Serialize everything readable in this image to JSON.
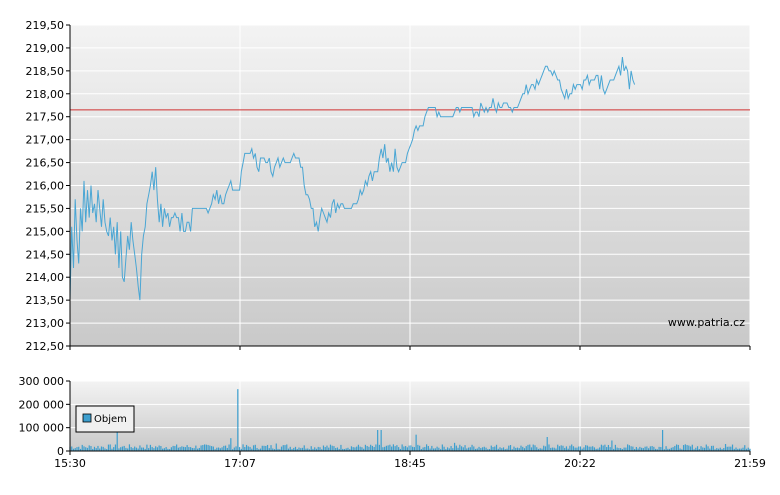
{
  "watermark": "www.patria.cz",
  "colors": {
    "line": "#4aa6d4",
    "reference": "#d03030",
    "volume": "#3d9fcf",
    "bg_top": "#f3f3f3",
    "bg_bottom": "#c9c9c9",
    "grid": "#ffffff",
    "axis": "#000000"
  },
  "chart_data": [
    {
      "type": "line",
      "name": "price",
      "x_tick_labels": [
        "15:30",
        "17:07",
        "18:45",
        "20:22",
        "21:59"
      ],
      "y_tick_labels": [
        "212,50",
        "213,00",
        "213,50",
        "214,00",
        "214,50",
        "215,00",
        "215,50",
        "216,00",
        "216,50",
        "217,00",
        "217,50",
        "218,00",
        "218,50",
        "219,00",
        "219,50"
      ],
      "ylim": [
        212.5,
        219.5
      ],
      "xlim_minutes": [
        0,
        389
      ],
      "reference_line": 217.65,
      "grid": true,
      "points": [
        [
          0,
          213.5
        ],
        [
          1,
          215.1
        ],
        [
          2,
          214.2
        ],
        [
          3,
          215.7
        ],
        [
          4,
          214.8
        ],
        [
          5,
          214.3
        ],
        [
          6,
          215.5
        ],
        [
          7,
          215.0
        ],
        [
          8,
          216.1
        ],
        [
          9,
          215.2
        ],
        [
          10,
          215.9
        ],
        [
          11,
          215.3
        ],
        [
          12,
          216.0
        ],
        [
          13,
          215.4
        ],
        [
          14,
          215.6
        ],
        [
          15,
          215.2
        ],
        [
          16,
          215.9
        ],
        [
          17,
          215.5
        ],
        [
          18,
          215.1
        ],
        [
          19,
          215.7
        ],
        [
          20,
          215.2
        ],
        [
          21,
          215.0
        ],
        [
          22,
          214.9
        ],
        [
          23,
          215.3
        ],
        [
          24,
          214.8
        ],
        [
          25,
          215.1
        ],
        [
          26,
          214.5
        ],
        [
          27,
          215.2
        ],
        [
          28,
          214.2
        ],
        [
          29,
          215.0
        ],
        [
          30,
          214.0
        ],
        [
          31,
          213.9
        ],
        [
          32,
          214.4
        ],
        [
          33,
          214.9
        ],
        [
          34,
          214.6
        ],
        [
          35,
          215.2
        ],
        [
          36,
          214.8
        ],
        [
          37,
          214.5
        ],
        [
          38,
          214.2
        ],
        [
          39,
          213.8
        ],
        [
          40,
          213.5
        ],
        [
          41,
          214.5
        ],
        [
          42,
          214.9
        ],
        [
          43,
          215.1
        ],
        [
          44,
          215.6
        ],
        [
          45,
          215.8
        ],
        [
          46,
          216.0
        ],
        [
          47,
          216.3
        ],
        [
          48,
          215.9
        ],
        [
          49,
          216.4
        ],
        [
          50,
          215.7
        ],
        [
          51,
          215.2
        ],
        [
          52,
          215.6
        ],
        [
          53,
          215.1
        ],
        [
          54,
          215.5
        ],
        [
          55,
          215.3
        ],
        [
          56,
          215.4
        ],
        [
          57,
          215.1
        ],
        [
          58,
          215.3
        ],
        [
          59,
          215.3
        ],
        [
          60,
          215.4
        ],
        [
          61,
          215.3
        ],
        [
          62,
          215.3
        ],
        [
          63,
          215.0
        ],
        [
          64,
          215.4
        ],
        [
          65,
          215.0
        ],
        [
          66,
          215.0
        ],
        [
          67,
          215.2
        ],
        [
          68,
          215.2
        ],
        [
          69,
          215.0
        ],
        [
          70,
          215.5
        ],
        [
          71,
          215.5
        ],
        [
          72,
          215.5
        ],
        [
          73,
          215.5
        ],
        [
          74,
          215.5
        ],
        [
          75,
          215.5
        ],
        [
          76,
          215.5
        ],
        [
          77,
          215.5
        ],
        [
          78,
          215.5
        ],
        [
          79,
          215.4
        ],
        [
          80,
          215.5
        ],
        [
          81,
          215.6
        ],
        [
          82,
          215.8
        ],
        [
          83,
          215.7
        ],
        [
          84,
          215.9
        ],
        [
          85,
          215.6
        ],
        [
          86,
          215.8
        ],
        [
          87,
          215.6
        ],
        [
          88,
          215.6
        ],
        [
          89,
          215.8
        ],
        [
          90,
          215.9
        ],
        [
          91,
          216.0
        ],
        [
          92,
          216.1
        ],
        [
          93,
          215.9
        ],
        [
          94,
          215.9
        ],
        [
          95,
          215.9
        ],
        [
          96,
          215.9
        ],
        [
          97,
          215.9
        ],
        [
          98,
          216.3
        ],
        [
          99,
          216.5
        ],
        [
          100,
          216.7
        ],
        [
          101,
          216.7
        ],
        [
          102,
          216.7
        ],
        [
          103,
          216.7
        ],
        [
          104,
          216.8
        ],
        [
          105,
          216.6
        ],
        [
          106,
          216.7
        ],
        [
          107,
          216.4
        ],
        [
          108,
          216.3
        ],
        [
          109,
          216.6
        ],
        [
          110,
          216.6
        ],
        [
          111,
          216.6
        ],
        [
          112,
          216.5
        ],
        [
          113,
          216.5
        ],
        [
          114,
          216.6
        ],
        [
          115,
          216.3
        ],
        [
          116,
          216.2
        ],
        [
          117,
          216.4
        ],
        [
          118,
          216.5
        ],
        [
          119,
          216.6
        ],
        [
          120,
          216.4
        ],
        [
          121,
          216.5
        ],
        [
          122,
          216.6
        ],
        [
          123,
          216.5
        ],
        [
          124,
          216.5
        ],
        [
          125,
          216.5
        ],
        [
          126,
          216.5
        ],
        [
          127,
          216.6
        ],
        [
          128,
          216.7
        ],
        [
          129,
          216.6
        ],
        [
          130,
          216.6
        ],
        [
          131,
          216.6
        ],
        [
          132,
          216.4
        ],
        [
          133,
          216.4
        ],
        [
          134,
          216.0
        ],
        [
          135,
          215.8
        ],
        [
          136,
          215.8
        ],
        [
          137,
          215.7
        ],
        [
          138,
          215.5
        ],
        [
          139,
          215.5
        ],
        [
          140,
          215.1
        ],
        [
          141,
          215.2
        ],
        [
          142,
          215.0
        ],
        [
          143,
          215.3
        ],
        [
          144,
          215.5
        ],
        [
          145,
          215.4
        ],
        [
          146,
          215.3
        ],
        [
          147,
          215.2
        ],
        [
          148,
          215.4
        ],
        [
          149,
          215.3
        ],
        [
          150,
          215.6
        ],
        [
          151,
          215.7
        ],
        [
          152,
          215.4
        ],
        [
          153,
          215.6
        ],
        [
          154,
          215.5
        ],
        [
          155,
          215.6
        ],
        [
          156,
          215.6
        ],
        [
          157,
          215.5
        ],
        [
          158,
          215.5
        ],
        [
          159,
          215.5
        ],
        [
          160,
          215.5
        ],
        [
          161,
          215.5
        ],
        [
          162,
          215.6
        ],
        [
          163,
          215.6
        ],
        [
          164,
          215.6
        ],
        [
          165,
          215.7
        ],
        [
          166,
          215.9
        ],
        [
          167,
          215.8
        ],
        [
          168,
          215.9
        ],
        [
          169,
          216.1
        ],
        [
          170,
          216.0
        ],
        [
          171,
          216.2
        ],
        [
          172,
          216.3
        ],
        [
          173,
          216.1
        ],
        [
          174,
          216.3
        ],
        [
          175,
          216.3
        ],
        [
          176,
          216.3
        ],
        [
          177,
          216.6
        ],
        [
          178,
          216.8
        ],
        [
          179,
          216.6
        ],
        [
          180,
          216.9
        ],
        [
          181,
          216.5
        ],
        [
          182,
          216.6
        ],
        [
          183,
          216.3
        ],
        [
          184,
          216.5
        ],
        [
          185,
          216.3
        ],
        [
          186,
          216.8
        ],
        [
          187,
          216.4
        ],
        [
          188,
          216.3
        ],
        [
          189,
          216.4
        ],
        [
          190,
          216.5
        ],
        [
          191,
          216.5
        ],
        [
          192,
          216.5
        ],
        [
          193,
          216.7
        ],
        [
          194,
          216.8
        ],
        [
          195,
          216.9
        ],
        [
          196,
          217.0
        ],
        [
          197,
          217.2
        ],
        [
          198,
          217.3
        ],
        [
          199,
          217.2
        ],
        [
          200,
          217.3
        ],
        [
          201,
          217.3
        ],
        [
          202,
          217.3
        ],
        [
          203,
          217.5
        ],
        [
          204,
          217.6
        ],
        [
          205,
          217.7
        ],
        [
          206,
          217.7
        ],
        [
          207,
          217.7
        ],
        [
          208,
          217.7
        ],
        [
          209,
          217.7
        ],
        [
          210,
          217.5
        ],
        [
          211,
          217.6
        ],
        [
          212,
          217.5
        ],
        [
          213,
          217.5
        ],
        [
          214,
          217.5
        ],
        [
          215,
          217.5
        ],
        [
          216,
          217.5
        ],
        [
          217,
          217.5
        ],
        [
          218,
          217.5
        ],
        [
          219,
          217.5
        ],
        [
          220,
          217.6
        ],
        [
          221,
          217.7
        ],
        [
          222,
          217.7
        ],
        [
          223,
          217.6
        ],
        [
          224,
          217.7
        ],
        [
          225,
          217.7
        ],
        [
          226,
          217.7
        ],
        [
          227,
          217.7
        ],
        [
          228,
          217.7
        ],
        [
          229,
          217.7
        ],
        [
          230,
          217.7
        ],
        [
          231,
          217.5
        ],
        [
          232,
          217.6
        ],
        [
          233,
          217.6
        ],
        [
          234,
          217.5
        ],
        [
          235,
          217.8
        ],
        [
          236,
          217.7
        ],
        [
          237,
          217.6
        ],
        [
          238,
          217.7
        ],
        [
          239,
          217.6
        ],
        [
          240,
          217.7
        ],
        [
          241,
          217.7
        ],
        [
          242,
          217.9
        ],
        [
          243,
          217.7
        ],
        [
          244,
          217.6
        ],
        [
          245,
          217.8
        ],
        [
          246,
          217.7
        ],
        [
          247,
          217.7
        ],
        [
          248,
          217.8
        ],
        [
          249,
          217.8
        ],
        [
          250,
          217.8
        ],
        [
          251,
          217.7
        ],
        [
          252,
          217.7
        ],
        [
          253,
          217.6
        ],
        [
          254,
          217.7
        ],
        [
          255,
          217.7
        ],
        [
          256,
          217.7
        ],
        [
          257,
          217.8
        ],
        [
          258,
          217.9
        ],
        [
          259,
          218.0
        ],
        [
          260,
          218.0
        ],
        [
          261,
          218.2
        ],
        [
          262,
          218.0
        ],
        [
          263,
          218.1
        ],
        [
          264,
          218.2
        ],
        [
          265,
          218.2
        ],
        [
          266,
          218.1
        ],
        [
          267,
          218.3
        ],
        [
          268,
          218.2
        ],
        [
          269,
          218.3
        ],
        [
          270,
          218.4
        ],
        [
          271,
          218.5
        ],
        [
          272,
          218.6
        ],
        [
          273,
          218.6
        ],
        [
          274,
          218.5
        ],
        [
          275,
          218.5
        ],
        [
          276,
          218.4
        ],
        [
          277,
          218.5
        ],
        [
          278,
          218.4
        ],
        [
          279,
          218.3
        ],
        [
          280,
          218.3
        ],
        [
          281,
          218.1
        ],
        [
          282,
          218.0
        ],
        [
          283,
          217.9
        ],
        [
          284,
          218.1
        ],
        [
          285,
          217.9
        ],
        [
          286,
          218.0
        ],
        [
          287,
          218.0
        ],
        [
          288,
          218.2
        ],
        [
          289,
          218.1
        ],
        [
          290,
          218.2
        ],
        [
          291,
          218.2
        ],
        [
          292,
          218.2
        ],
        [
          293,
          218.1
        ],
        [
          294,
          218.3
        ],
        [
          295,
          218.3
        ],
        [
          296,
          218.4
        ],
        [
          297,
          218.2
        ],
        [
          298,
          218.3
        ],
        [
          299,
          218.3
        ],
        [
          300,
          218.3
        ],
        [
          301,
          218.4
        ],
        [
          302,
          218.4
        ],
        [
          303,
          218.1
        ],
        [
          304,
          218.4
        ],
        [
          305,
          218.1
        ],
        [
          306,
          218.0
        ],
        [
          307,
          218.1
        ],
        [
          308,
          218.2
        ],
        [
          309,
          218.3
        ],
        [
          310,
          218.3
        ],
        [
          311,
          218.3
        ],
        [
          312,
          218.4
        ],
        [
          313,
          218.5
        ],
        [
          314,
          218.6
        ],
        [
          315,
          218.4
        ],
        [
          316,
          218.8
        ],
        [
          317,
          218.5
        ],
        [
          318,
          218.6
        ],
        [
          319,
          218.5
        ],
        [
          320,
          218.1
        ],
        [
          321,
          218.5
        ],
        [
          322,
          218.3
        ],
        [
          323,
          218.2
        ]
      ]
    },
    {
      "type": "bar",
      "name": "volume",
      "legend": "Objem",
      "x_tick_labels": [
        "15:30",
        "17:07",
        "18:45",
        "20:22",
        "21:59"
      ],
      "y_tick_labels": [
        "0",
        "100 000",
        "200 000",
        "300 000"
      ],
      "ylim": [
        0,
        300000
      ],
      "grid": true,
      "base": 18000,
      "spikes": [
        [
          27,
          100000
        ],
        [
          64,
          20000
        ],
        [
          92,
          55000
        ],
        [
          96,
          265000
        ],
        [
          118,
          32000
        ],
        [
          124,
          28000
        ],
        [
          176,
          90000
        ],
        [
          178,
          90000
        ],
        [
          198,
          70000
        ],
        [
          220,
          35000
        ],
        [
          273,
          60000
        ],
        [
          310,
          45000
        ],
        [
          339,
          90000
        ],
        [
          375,
          30000
        ],
        [
          386,
          25000
        ]
      ]
    }
  ]
}
